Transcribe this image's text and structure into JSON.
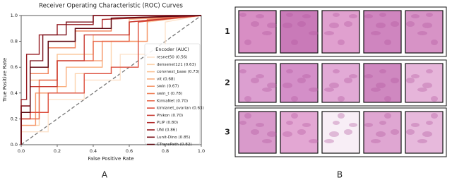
{
  "chart_data": {
    "type": "line",
    "title": "Receiver Operating Characteristic (ROC) Curves",
    "xlabel": "False Positive Rate",
    "ylabel": "True Positive Rate",
    "legend_title": "Encoder (AUC)",
    "legend": "lower right",
    "xlim": [
      0,
      1
    ],
    "ylim": [
      0,
      1
    ],
    "xticks": [
      {
        "value": 0,
        "label": "0.0"
      },
      0.2,
      0.4,
      0.6,
      0.8,
      {
        "value": 1,
        "label": "1.0"
      }
    ],
    "yticks": [
      {
        "value": 0,
        "label": "0.0"
      },
      0.2,
      0.4,
      0.6,
      0.8,
      {
        "value": 1,
        "label": "1.0"
      }
    ],
    "series": [
      {
        "name": "resnet50 (0.56)",
        "color": "#fde3cc",
        "x": [
          0,
          0,
          0.15,
          0.15,
          0.35,
          0.35,
          0.55,
          0.55,
          0.8,
          0.8,
          1
        ],
        "values": [
          0,
          0.1,
          0.1,
          0.35,
          0.35,
          0.5,
          0.5,
          0.7,
          0.7,
          0.95,
          1
        ]
      },
      {
        "name": "densenet121 (0.63)",
        "color": "#fcd3ad",
        "x": [
          0,
          0,
          0.1,
          0.1,
          0.3,
          0.3,
          0.5,
          0.5,
          0.7,
          0.7,
          1
        ],
        "values": [
          0,
          0.15,
          0.15,
          0.4,
          0.4,
          0.55,
          0.55,
          0.8,
          0.8,
          0.95,
          1
        ]
      },
      {
        "name": "convnext_base (0.73)",
        "color": "#fbc293",
        "x": [
          0,
          0,
          0.05,
          0.05,
          0.2,
          0.2,
          0.4,
          0.4,
          0.6,
          0.6,
          1
        ],
        "values": [
          0,
          0.2,
          0.2,
          0.5,
          0.5,
          0.7,
          0.7,
          0.85,
          0.85,
          0.97,
          1
        ]
      },
      {
        "name": "vit (0.68)",
        "color": "#f9ad7c",
        "x": [
          0,
          0,
          0.1,
          0.1,
          0.25,
          0.25,
          0.45,
          0.45,
          0.65,
          0.65,
          1
        ],
        "values": [
          0,
          0.2,
          0.2,
          0.45,
          0.45,
          0.6,
          0.6,
          0.8,
          0.8,
          0.95,
          1
        ]
      },
      {
        "name": "swin (0.67)",
        "color": "#f6976a",
        "x": [
          0,
          0,
          0.08,
          0.08,
          0.2,
          0.2,
          0.45,
          0.45,
          0.7,
          0.7,
          1
        ],
        "values": [
          0,
          0.15,
          0.15,
          0.4,
          0.4,
          0.65,
          0.65,
          0.8,
          0.8,
          0.97,
          1
        ]
      },
      {
        "name": "swin_t (0.78)",
        "color": "#f08058",
        "x": [
          0,
          0,
          0.05,
          0.05,
          0.15,
          0.15,
          0.3,
          0.3,
          0.5,
          0.5,
          1
        ],
        "values": [
          0,
          0.25,
          0.25,
          0.55,
          0.55,
          0.75,
          0.75,
          0.88,
          0.88,
          0.98,
          1
        ]
      },
      {
        "name": "KimiaNet (0.70)",
        "color": "#e8684b",
        "x": [
          0,
          0,
          0.1,
          0.1,
          0.2,
          0.2,
          0.4,
          0.4,
          0.6,
          0.6,
          1
        ],
        "values": [
          0,
          0.2,
          0.2,
          0.5,
          0.5,
          0.65,
          0.65,
          0.8,
          0.8,
          0.95,
          1
        ]
      },
      {
        "name": "kimianet_ovarian (0.63)",
        "color": "#dc4f3e",
        "x": [
          0,
          0,
          0.15,
          0.15,
          0.35,
          0.35,
          0.5,
          0.5,
          0.65,
          0.65,
          1
        ],
        "values": [
          0,
          0.25,
          0.25,
          0.4,
          0.4,
          0.55,
          0.55,
          0.6,
          0.6,
          0.95,
          1
        ]
      },
      {
        "name": "Phikon (0.70)",
        "color": "#c93b32",
        "x": [
          0,
          0,
          0.05,
          0.05,
          0.2,
          0.2,
          0.35,
          0.35,
          0.6,
          0.6,
          1
        ],
        "values": [
          0,
          0.2,
          0.2,
          0.45,
          0.45,
          0.65,
          0.65,
          0.85,
          0.85,
          0.95,
          1
        ]
      },
      {
        "name": "PLIP (0.80)",
        "color": "#b02a2a",
        "x": [
          0,
          0,
          0.05,
          0.05,
          0.15,
          0.15,
          0.3,
          0.3,
          0.45,
          0.45,
          1
        ],
        "values": [
          0,
          0.3,
          0.3,
          0.6,
          0.6,
          0.8,
          0.8,
          0.9,
          0.9,
          0.97,
          1
        ]
      },
      {
        "name": "UNI (0.86)",
        "color": "#951c22",
        "x": [
          0,
          0,
          0.03,
          0.03,
          0.1,
          0.1,
          0.2,
          0.2,
          0.4,
          0.4,
          1
        ],
        "values": [
          0,
          0.35,
          0.35,
          0.7,
          0.7,
          0.85,
          0.85,
          0.93,
          0.93,
          1,
          1
        ]
      },
      {
        "name": "Lunit-Dino (0.85)",
        "color": "#7a101a",
        "x": [
          0,
          0,
          0.05,
          0.05,
          0.12,
          0.12,
          0.25,
          0.25,
          0.4,
          0.4,
          1
        ],
        "values": [
          0,
          0.3,
          0.3,
          0.65,
          0.65,
          0.85,
          0.85,
          0.95,
          0.95,
          1,
          1
        ]
      },
      {
        "name": "CTransPath (0.82)",
        "color": "#5c0812",
        "x": [
          0,
          0,
          0.05,
          0.05,
          0.15,
          0.15,
          0.3,
          0.3,
          0.5,
          0.5,
          1
        ],
        "values": [
          0,
          0.25,
          0.25,
          0.6,
          0.6,
          0.8,
          0.8,
          0.9,
          0.9,
          0.98,
          1
        ]
      }
    ]
  },
  "panels": {
    "a_label": "A",
    "b_label": "B",
    "row_labels": [
      "1",
      "2",
      "3"
    ]
  }
}
